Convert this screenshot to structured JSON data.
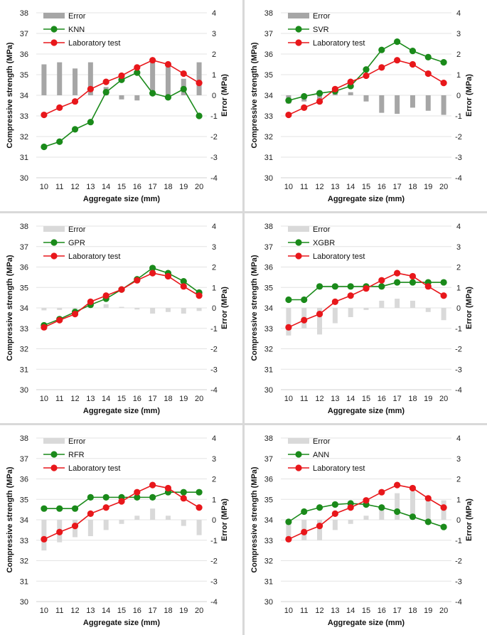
{
  "chart_data": [
    {
      "type": "bar+line",
      "model": "KNN",
      "categories": [
        "10",
        "11",
        "12",
        "13",
        "14",
        "15",
        "16",
        "17",
        "18",
        "19",
        "20"
      ],
      "series": [
        {
          "name": "Error",
          "axis": "right",
          "kind": "bar",
          "color": "#a6a6a6",
          "values": [
            1.5,
            1.6,
            1.3,
            1.6,
            0.4,
            -0.2,
            -0.25,
            1.6,
            1.6,
            0.8,
            1.6
          ]
        },
        {
          "name": "KNN",
          "axis": "left",
          "kind": "line",
          "color": "#1a8a1a",
          "values": [
            31.5,
            31.75,
            32.35,
            32.7,
            34.15,
            34.75,
            35.1,
            34.1,
            33.9,
            34.3,
            33.0
          ]
        },
        {
          "name": "Laboratory test",
          "axis": "left",
          "kind": "line",
          "color": "#e8171b",
          "values": [
            33.05,
            33.4,
            33.7,
            34.3,
            34.65,
            34.95,
            35.35,
            35.7,
            35.5,
            35.05,
            34.6
          ]
        }
      ],
      "xlabel": "Aggregate size (mm)",
      "ylabel": "Compressive strength (MPa)",
      "y2label": "Error (MPa)",
      "ylim": [
        30,
        38
      ],
      "y2lim": [
        -4,
        4
      ],
      "yticks": [
        "30",
        "31",
        "32",
        "33",
        "34",
        "35",
        "36",
        "37",
        "38"
      ],
      "y2ticks": [
        "-4",
        "-3",
        "-2",
        "-1",
        "0",
        "1",
        "2",
        "3",
        "4"
      ],
      "legend": [
        "Error",
        "KNN",
        "Laboratory test"
      ]
    },
    {
      "type": "bar+line",
      "model": "SVR",
      "categories": [
        "10",
        "11",
        "12",
        "13",
        "14",
        "15",
        "16",
        "17",
        "18",
        "19",
        "20"
      ],
      "series": [
        {
          "name": "Error",
          "axis": "right",
          "kind": "bar",
          "color": "#a6a6a6",
          "values": [
            -0.4,
            -0.3,
            -0.2,
            0.2,
            0.15,
            -0.3,
            -0.85,
            -0.9,
            -0.6,
            -0.75,
            -0.95
          ]
        },
        {
          "name": "SVR",
          "axis": "left",
          "kind": "line",
          "color": "#1a8a1a",
          "values": [
            33.75,
            33.95,
            34.1,
            34.2,
            34.45,
            35.25,
            36.2,
            36.6,
            36.15,
            35.85,
            35.6
          ]
        },
        {
          "name": "Laboratory test",
          "axis": "left",
          "kind": "line",
          "color": "#e8171b",
          "values": [
            33.05,
            33.4,
            33.7,
            34.3,
            34.65,
            34.95,
            35.35,
            35.7,
            35.5,
            35.05,
            34.6
          ]
        }
      ],
      "xlabel": "Aggregate size (mm)",
      "ylabel": "Compressive strength (MPa)",
      "y2label": "Error (MPa)",
      "ylim": [
        30,
        38
      ],
      "y2lim": [
        -4,
        4
      ],
      "yticks": [
        "30",
        "31",
        "32",
        "33",
        "34",
        "35",
        "36",
        "37",
        "38"
      ],
      "y2ticks": [
        "-4",
        "-3",
        "-2",
        "-1",
        "0",
        "1",
        "2",
        "3",
        "4"
      ],
      "legend": [
        "Error",
        "SVR",
        "Laboratory test"
      ]
    },
    {
      "type": "bar+line",
      "model": "GPR",
      "categories": [
        "10",
        "11",
        "12",
        "13",
        "14",
        "15",
        "16",
        "17",
        "18",
        "19",
        "20"
      ],
      "series": [
        {
          "name": "Error",
          "axis": "right",
          "kind": "bar",
          "color": "#d9d9d9",
          "values": [
            -0.12,
            -0.1,
            -0.15,
            0.15,
            0.18,
            0.05,
            -0.08,
            -0.28,
            -0.2,
            -0.28,
            -0.15
          ]
        },
        {
          "name": "GPR",
          "axis": "left",
          "kind": "line",
          "color": "#1a8a1a",
          "values": [
            33.15,
            33.45,
            33.8,
            34.15,
            34.45,
            34.9,
            35.4,
            35.95,
            35.7,
            35.3,
            34.75
          ]
        },
        {
          "name": "Laboratory test",
          "axis": "left",
          "kind": "line",
          "color": "#e8171b",
          "values": [
            33.05,
            33.4,
            33.7,
            34.3,
            34.6,
            34.9,
            35.35,
            35.7,
            35.55,
            35.05,
            34.6
          ]
        }
      ],
      "xlabel": "Aggregate size (mm)",
      "ylabel": "Compressive strength (MPa)",
      "y2label": "Error (MPa)",
      "ylim": [
        30,
        38
      ],
      "y2lim": [
        -4,
        4
      ],
      "yticks": [
        "30",
        "31",
        "32",
        "33",
        "34",
        "35",
        "36",
        "37",
        "38"
      ],
      "y2ticks": [
        "-4",
        "-3",
        "-2",
        "-1",
        "0",
        "1",
        "2",
        "3",
        "4"
      ],
      "legend": [
        "Error",
        "GPR",
        "Laboratory test"
      ]
    },
    {
      "type": "bar+line",
      "model": "XGBR",
      "categories": [
        "10",
        "11",
        "12",
        "13",
        "14",
        "15",
        "16",
        "17",
        "18",
        "19",
        "20"
      ],
      "series": [
        {
          "name": "Error",
          "axis": "right",
          "kind": "bar",
          "color": "#d9d9d9",
          "values": [
            -1.35,
            -1.0,
            -1.3,
            -0.75,
            -0.45,
            -0.1,
            0.35,
            0.45,
            0.35,
            -0.2,
            -0.6
          ]
        },
        {
          "name": "XGBR",
          "axis": "left",
          "kind": "line",
          "color": "#1a8a1a",
          "values": [
            34.4,
            34.4,
            35.05,
            35.05,
            35.05,
            35.05,
            35.05,
            35.25,
            35.25,
            35.25,
            35.25
          ]
        },
        {
          "name": "Laboratory test",
          "axis": "left",
          "kind": "line",
          "color": "#e8171b",
          "values": [
            33.05,
            33.4,
            33.7,
            34.3,
            34.6,
            34.95,
            35.35,
            35.7,
            35.55,
            35.05,
            34.6
          ]
        }
      ],
      "xlabel": "Aggregate size (mm)",
      "ylabel": "Compressive strength (MPa)",
      "y2label": "Error (MPa)",
      "ylim": [
        30,
        38
      ],
      "y2lim": [
        -4,
        4
      ],
      "yticks": [
        "30",
        "31",
        "32",
        "33",
        "34",
        "35",
        "36",
        "37",
        "38"
      ],
      "y2ticks": [
        "-4",
        "-3",
        "-2",
        "-1",
        "0",
        "1",
        "2",
        "3",
        "4"
      ],
      "legend": [
        "Error",
        "XGBR",
        "Laboratory test"
      ]
    },
    {
      "type": "bar+line",
      "model": "RFR",
      "categories": [
        "10",
        "11",
        "12",
        "13",
        "14",
        "15",
        "16",
        "17",
        "18",
        "19",
        "20"
      ],
      "series": [
        {
          "name": "Error",
          "axis": "right",
          "kind": "bar",
          "color": "#d9d9d9",
          "values": [
            -1.5,
            -1.1,
            -0.85,
            -0.8,
            -0.5,
            -0.2,
            0.2,
            0.55,
            0.2,
            -0.3,
            -0.75
          ]
        },
        {
          "name": "RFR",
          "axis": "left",
          "kind": "line",
          "color": "#1a8a1a",
          "values": [
            34.55,
            34.55,
            34.55,
            35.1,
            35.1,
            35.1,
            35.1,
            35.1,
            35.35,
            35.35,
            35.35
          ]
        },
        {
          "name": "Laboratory test",
          "axis": "left",
          "kind": "line",
          "color": "#e8171b",
          "values": [
            33.05,
            33.4,
            33.7,
            34.3,
            34.6,
            34.9,
            35.35,
            35.7,
            35.55,
            35.05,
            34.6
          ]
        }
      ],
      "xlabel": "Aggregate size (mm)",
      "ylabel": "Compressive strength (MPa)",
      "y2label": "Error (MPa)",
      "ylim": [
        30,
        38
      ],
      "y2lim": [
        -4,
        4
      ],
      "yticks": [
        "30",
        "31",
        "32",
        "33",
        "34",
        "35",
        "36",
        "37",
        "38"
      ],
      "y2ticks": [
        "-4",
        "-3",
        "-2",
        "-1",
        "0",
        "1",
        "2",
        "3",
        "4"
      ],
      "legend": [
        "Error",
        "RFR",
        "Laboratory test"
      ]
    },
    {
      "type": "bar+line",
      "model": "ANN",
      "categories": [
        "10",
        "11",
        "12",
        "13",
        "14",
        "15",
        "16",
        "17",
        "18",
        "19",
        "20"
      ],
      "series": [
        {
          "name": "Error",
          "axis": "right",
          "kind": "bar",
          "color": "#d9d9d9",
          "values": [
            -0.85,
            -1.0,
            -1.0,
            -0.5,
            -0.2,
            0.2,
            0.7,
            1.3,
            1.4,
            1.1,
            0.95
          ]
        },
        {
          "name": "ANN",
          "axis": "left",
          "kind": "line",
          "color": "#1a8a1a",
          "values": [
            33.9,
            34.4,
            34.6,
            34.75,
            34.8,
            34.75,
            34.6,
            34.4,
            34.15,
            33.9,
            33.65
          ]
        },
        {
          "name": "Laboratory test",
          "axis": "left",
          "kind": "line",
          "color": "#e8171b",
          "values": [
            33.05,
            33.4,
            33.7,
            34.3,
            34.6,
            34.95,
            35.35,
            35.7,
            35.55,
            35.05,
            34.6
          ]
        }
      ],
      "xlabel": "Aggregate size (mm)",
      "ylabel": "Compressive strength (MPa)",
      "y2label": "Error (MPa)",
      "ylim": [
        30,
        38
      ],
      "y2lim": [
        -4,
        4
      ],
      "yticks": [
        "30",
        "31",
        "32",
        "33",
        "34",
        "35",
        "36",
        "37",
        "38"
      ],
      "y2ticks": [
        "-4",
        "-3",
        "-2",
        "-1",
        "0",
        "1",
        "2",
        "3",
        "4"
      ],
      "legend": [
        "Error",
        "ANN",
        "Laboratory test"
      ]
    }
  ]
}
